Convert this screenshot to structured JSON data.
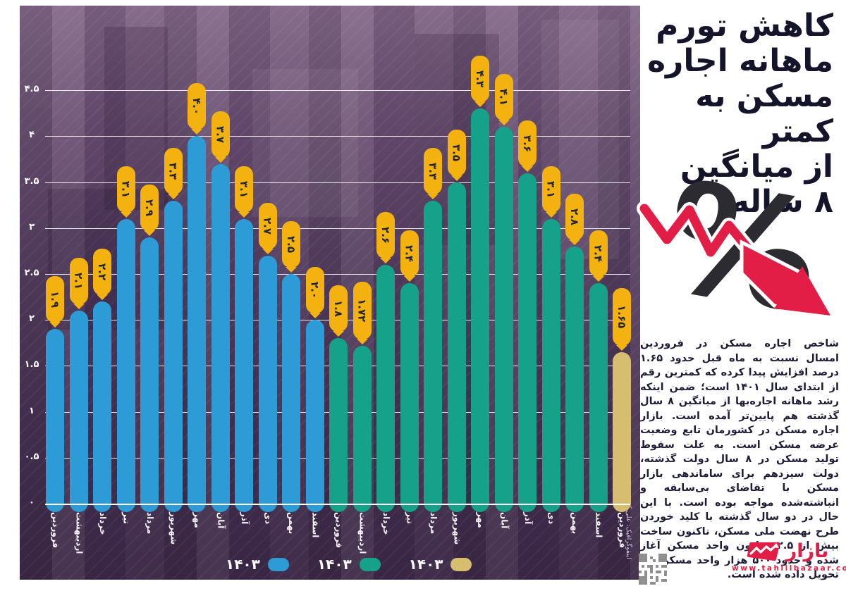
{
  "title": {
    "text": "کاهش تورم ماهانه اجاره مسکن به کمتر از میانگین ۸ ساله",
    "lines": "کاهش تورم\nماهانه اجاره\nمسکن به کمتر\nاز میانگین\n۸ ساله"
  },
  "article": {
    "text": "شاخص اجاره مسکن در فروردین امسال نسبت به ماه قبل حدود ۱.۶۵ درصد افزایش پیدا کرده که کمترین رقم از ابتدای سال ۱۴۰۱ است؛ ضمن اینکه رشد ماهانه اجاره‌بها از میانگین ۸ سال گذشته هم پایین‌تر آمده است. بازار اجاره مسکن در کشورمان تابع وضعیت عرضه مسکن است. به علت سقوط تولید مسکن در ۸ سال دولت گذشته، دولت سیزدهم برای ساماندهی بازار مسکن با تقاضای بی‌سابقه و انباشته‌شده مواجه بوده است. با این حال در دو سال گذشته با کلید خوردن طرح نهضت ملی مسکن، تاکنون ساخت بیش از ۲.۵ میلیون واحد مسکن آغاز شده و حدود ۵۰۰ هزار واحد مسکن هم تحویل داده شده است."
  },
  "credit": {
    "text": "اینفوگرافیک: علی کریمی"
  },
  "brand": {
    "name": "بازار",
    "url": "www.tahlilbazaar.com",
    "red": "#E31E46"
  },
  "legend": [
    {
      "label": "۱۴۰۳",
      "color": "#2D9CD6"
    },
    {
      "label": "۱۴۰۳",
      "color": "#16A28A"
    },
    {
      "label": "۱۴۰۳",
      "color": "#D6BD70"
    }
  ],
  "colors": {
    "blue": "#2D9CD6",
    "teal": "#16A28A",
    "gold": "#D6BD70",
    "tag": "#F4B211",
    "navy": "#22263a"
  },
  "axis": {
    "yticks": [
      {
        "label": "۴.۵",
        "value": 4.5
      },
      {
        "label": "۴",
        "value": 4.0
      },
      {
        "label": "۳.۵",
        "value": 3.5
      },
      {
        "label": "۳",
        "value": 3.0
      },
      {
        "label": "۲.۵",
        "value": 2.5
      },
      {
        "label": "۲",
        "value": 2.0
      },
      {
        "label": "۱.۵",
        "value": 1.5
      },
      {
        "label": "۱",
        "value": 1.0
      },
      {
        "label": "۰.۵",
        "value": 0.5
      },
      {
        "label": "۰",
        "value": 0.0
      }
    ]
  },
  "chart_data": {
    "type": "bar",
    "title": "کاهش تورم ماهانه اجاره مسکن به کمتر از میانگین ۸ ساله",
    "ylim": [
      0,
      4.5
    ],
    "grid": true,
    "legend_position": "bottom",
    "categories": [
      "فروردین",
      "اردیبهشت",
      "خرداد",
      "تیر",
      "مرداد",
      "شهریور",
      "مهر",
      "آبان",
      "آذر",
      "دی",
      "بهمن",
      "اسفند",
      "فروردین",
      "اردیبهشت",
      "خرداد",
      "تیر",
      "مرداد",
      "شهریور",
      "مهر",
      "آبان",
      "آذر",
      "دی",
      "بهمن",
      "اسفند",
      "فروردین"
    ],
    "series": [
      {
        "name": "۱۴۰۳ (آبی)",
        "color": "#2D9CD6",
        "months": [
          "فروردین",
          "اردیبهشت",
          "خرداد",
          "تیر",
          "مرداد",
          "شهریور",
          "مهر",
          "آبان",
          "آذر",
          "دی",
          "بهمن",
          "اسفند"
        ],
        "values": [
          1.9,
          2.1,
          2.2,
          3.1,
          2.9,
          3.3,
          4.0,
          3.7,
          3.1,
          2.7,
          2.5,
          2.0
        ]
      },
      {
        "name": "۱۴۰۳ (سبز)",
        "color": "#16A28A",
        "months": [
          "فروردین",
          "اردیبهشت",
          "خرداد",
          "تیر",
          "مرداد",
          "شهریور",
          "مهر",
          "آبان",
          "آذر",
          "دی",
          "بهمن",
          "اسفند"
        ],
        "values": [
          1.8,
          1.72,
          2.6,
          2.4,
          3.3,
          3.5,
          4.3,
          4.1,
          3.6,
          3.1,
          2.8,
          2.4
        ]
      },
      {
        "name": "۱۴۰۳ (طلایی)",
        "color": "#D6BD70",
        "months": [
          "فروردین"
        ],
        "values": [
          1.65
        ]
      }
    ],
    "bars": [
      {
        "month": "فروردین",
        "value": 1.9,
        "label": "۱.۹",
        "series": 0
      },
      {
        "month": "اردیبهشت",
        "value": 2.1,
        "label": "۲.۱",
        "series": 0
      },
      {
        "month": "خرداد",
        "value": 2.2,
        "label": "۲.۲",
        "series": 0
      },
      {
        "month": "تیر",
        "value": 3.1,
        "label": "۳.۱",
        "series": 0
      },
      {
        "month": "مرداد",
        "value": 2.9,
        "label": "۲.۹",
        "series": 0
      },
      {
        "month": "شهریور",
        "value": 3.3,
        "label": "۳.۳",
        "series": 0
      },
      {
        "month": "مهر",
        "value": 4.0,
        "label": "۴.۰",
        "series": 0
      },
      {
        "month": "آبان",
        "value": 3.7,
        "label": "۳.۷",
        "series": 0
      },
      {
        "month": "آذر",
        "value": 3.1,
        "label": "۳.۱",
        "series": 0
      },
      {
        "month": "دی",
        "value": 2.7,
        "label": "۲.۷",
        "series": 0
      },
      {
        "month": "بهمن",
        "value": 2.5,
        "label": "۲.۵",
        "series": 0
      },
      {
        "month": "اسفند",
        "value": 2.0,
        "label": "۲.۰",
        "series": 0
      },
      {
        "month": "فروردین",
        "value": 1.8,
        "label": "۱.۸",
        "series": 1
      },
      {
        "month": "اردیبهشت",
        "value": 1.72,
        "label": "۱.۷۲",
        "series": 1
      },
      {
        "month": "خرداد",
        "value": 2.6,
        "label": "۲.۶",
        "series": 1
      },
      {
        "month": "تیر",
        "value": 2.4,
        "label": "۲.۴",
        "series": 1
      },
      {
        "month": "مرداد",
        "value": 3.3,
        "label": "۳.۳",
        "series": 1
      },
      {
        "month": "شهریور",
        "value": 3.5,
        "label": "۳.۵",
        "series": 1
      },
      {
        "month": "مهر",
        "value": 4.3,
        "label": "۴.۳",
        "series": 1
      },
      {
        "month": "آبان",
        "value": 4.1,
        "label": "۴.۱",
        "series": 1
      },
      {
        "month": "آذر",
        "value": 3.6,
        "label": "۳.۶",
        "series": 1
      },
      {
        "month": "دی",
        "value": 3.1,
        "label": "۳.۱",
        "series": 1
      },
      {
        "month": "بهمن",
        "value": 2.8,
        "label": "۲.۸",
        "series": 1
      },
      {
        "month": "اسفند",
        "value": 2.4,
        "label": "۲.۴",
        "series": 1
      },
      {
        "month": "فروردین",
        "value": 1.65,
        "label": "۱.۶۵",
        "series": 2
      }
    ]
  }
}
